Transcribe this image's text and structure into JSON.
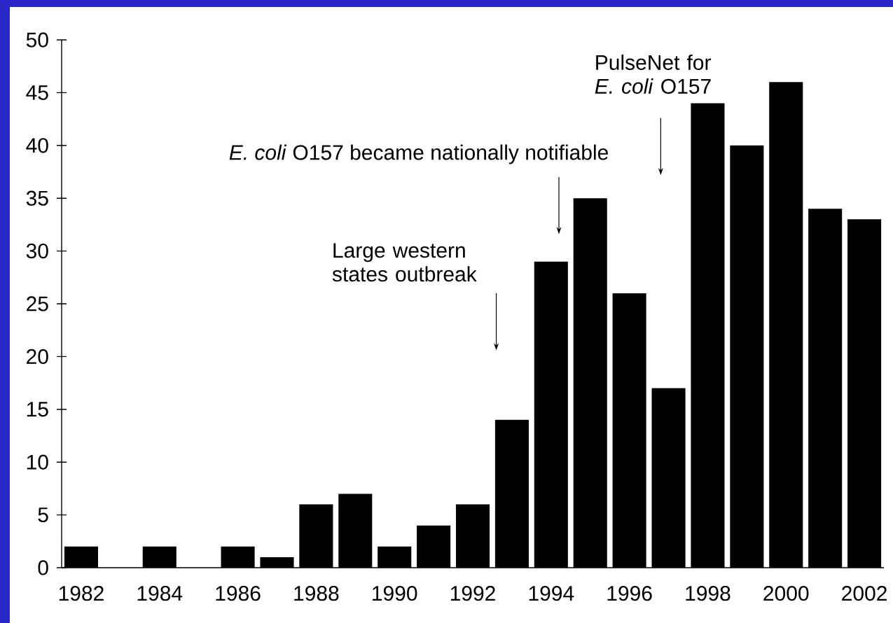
{
  "chart_data": {
    "type": "bar",
    "categories": [
      "1982",
      null,
      "1984",
      null,
      "1986",
      null,
      "1988",
      null,
      "1990",
      null,
      "1992",
      null,
      "1994",
      null,
      "1996",
      null,
      "1998",
      null,
      "2000",
      null,
      "2002"
    ],
    "values": [
      2,
      0,
      2,
      0,
      2,
      1,
      6,
      7,
      2,
      4,
      6,
      14,
      29,
      35,
      26,
      17,
      44,
      40,
      46,
      34,
      33
    ],
    "color": "#000000",
    "ylim": [
      0,
      50
    ],
    "yticks": [
      0,
      5,
      10,
      15,
      20,
      25,
      30,
      35,
      40,
      45,
      50
    ],
    "annotations": [
      "Large western states outbreak",
      "*E. coli* O157 became nationally notifiable",
      "PulseNet for *E. coli* O157"
    ]
  }
}
